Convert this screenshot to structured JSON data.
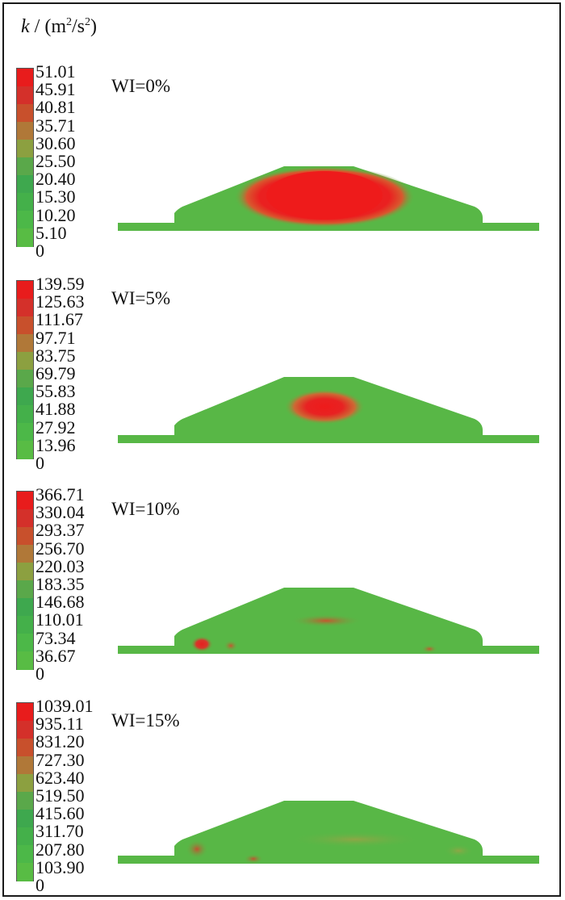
{
  "title": {
    "variable": "k",
    "rest": " / (m",
    "sup1": "2",
    "mid": "/s",
    "sup2": "2",
    "end": ")"
  },
  "colorbar_colors": [
    "#e81c1c",
    "#d4302a",
    "#c8502c",
    "#b07838",
    "#8ca040",
    "#5aa84a",
    "#3ea84e",
    "#44b04a",
    "#4cb848",
    "#58bc44"
  ],
  "panels": [
    {
      "label": "WI=0%",
      "ticks": [
        "51.01",
        "45.91",
        "40.81",
        "35.71",
        "30.60",
        "25.50",
        "20.40",
        "15.30",
        "10.20",
        "5.10",
        "0"
      ]
    },
    {
      "label": "WI=5%",
      "ticks": [
        "139.59",
        "125.63",
        "111.67",
        "97.71",
        "83.75",
        "69.79",
        "55.83",
        "41.88",
        "27.92",
        "13.96",
        "0"
      ]
    },
    {
      "label": "WI=10%",
      "ticks": [
        "366.71",
        "330.04",
        "293.37",
        "256.70",
        "220.03",
        "183.35",
        "146.68",
        "110.01",
        "73.34",
        "36.67",
        "0"
      ]
    },
    {
      "label": "WI=15%",
      "ticks": [
        "1039.01",
        "935.11",
        "831.20",
        "727.30",
        "623.40",
        "519.50",
        "415.60",
        "311.70",
        "207.80",
        "103.90",
        "0"
      ]
    }
  ]
}
